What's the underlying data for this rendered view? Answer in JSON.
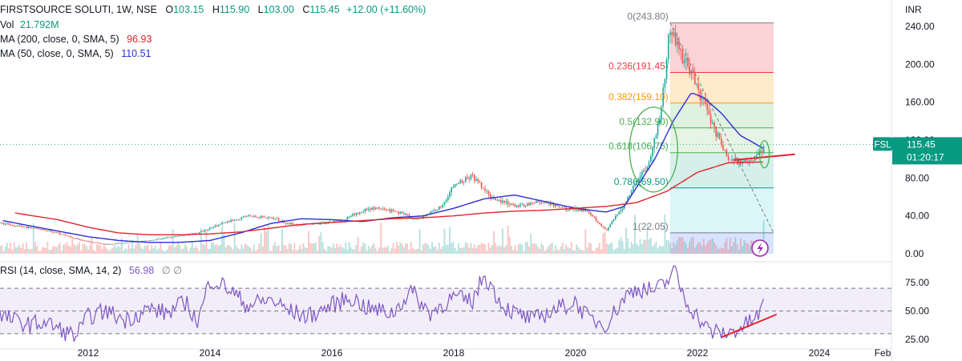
{
  "header": {
    "symbol": "FIRSTSOURCE SOLUTI, 1W, NSE",
    "o_label": "O",
    "o_value": "103.15",
    "h_label": "H",
    "h_value": "115.90",
    "l_label": "L",
    "l_value": "103.00",
    "c_label": "C",
    "c_value": "115.45",
    "change": "+12.00 (+11.60%)",
    "vol_label": "Vol",
    "vol_value": "21.792M",
    "ma200_label": "MA (200, close, 0, SMA, 5)",
    "ma200_value": "96.93",
    "ma50_label": "MA (50, close, 0, SMA, 5)",
    "ma50_value": "110.51"
  },
  "price_scale": {
    "currency": "INR",
    "ticks": [
      "240.00",
      "200.00",
      "160.00",
      "120.00",
      "80.00",
      "40.00",
      "0.00"
    ],
    "tick_values": [
      240,
      200,
      160,
      120,
      80,
      40,
      0
    ],
    "last_price_tag": "FSL",
    "last_price": "115.45",
    "countdown": "01:20:17"
  },
  "rsi": {
    "label": "RSI (14, close, SMA, 14, 2)",
    "value": "56.98",
    "extra": "∅ ∅",
    "ticks": [
      "75.00",
      "50.00",
      "25.00"
    ],
    "tick_values": [
      75,
      50,
      25
    ]
  },
  "time_axis": {
    "labels": [
      "2012",
      "2014",
      "2016",
      "2018",
      "2020",
      "2022",
      "2024",
      "Feb"
    ]
  },
  "colors": {
    "up": "#26a69a",
    "down": "#ef5350",
    "ma50": "#2a2fd4",
    "ma200": "#e0262b",
    "rsi": "#7e57c2",
    "trend": "#e8222a",
    "fib_red": "#f23645",
    "fib_orange": "#ff9800",
    "fib_green": "#4caf50",
    "fib_teal": "#089981",
    "fib_gray": "#787b86"
  },
  "chart_data": [
    {
      "type": "line",
      "title": "FIRSTSOURCE SOLUTI, 1W, NSE",
      "x_unit": "year",
      "y_range": [
        0,
        250
      ],
      "x_range": [
        2010.6,
        2025.2
      ],
      "grid": false,
      "series": [
        {
          "name": "FIRSTSOURCE SOLUTI",
          "x": [
            2010.6,
            2011.0,
            2011.5,
            2011.9,
            2012.3,
            2012.7,
            2013.0,
            2013.4,
            2013.8,
            2014.2,
            2014.6,
            2015.0,
            2015.4,
            2015.8,
            2016.2,
            2016.6,
            2017.0,
            2017.4,
            2017.8,
            2018.0,
            2018.3,
            2018.6,
            2019.0,
            2019.4,
            2019.8,
            2020.2,
            2020.5,
            2020.8,
            2021.0,
            2021.2,
            2021.4,
            2021.55,
            2021.7,
            2021.9,
            2022.1,
            2022.3,
            2022.5,
            2022.7,
            2022.9,
            2023.05,
            2023.1
          ],
          "y": [
            32,
            28,
            22,
            14,
            10,
            12,
            14,
            18,
            22,
            32,
            40,
            38,
            30,
            32,
            36,
            48,
            46,
            36,
            50,
            72,
            82,
            60,
            50,
            55,
            48,
            46,
            24,
            52,
            78,
            95,
            150,
            240,
            215,
            190,
            160,
            130,
            100,
            97,
            100,
            108,
            115.45
          ]
        },
        {
          "name": "MA (50, close, 0, SMA, 5)",
          "x": [
            2010.6,
            2011.0,
            2011.5,
            2012.0,
            2012.5,
            2013.0,
            2013.5,
            2014.0,
            2014.5,
            2015.0,
            2015.5,
            2016.0,
            2016.5,
            2017.0,
            2017.5,
            2018.0,
            2018.5,
            2019.0,
            2019.5,
            2020.0,
            2020.5,
            2020.8,
            2021.0,
            2021.3,
            2021.6,
            2021.9,
            2022.1,
            2022.4,
            2022.7,
            2022.9,
            2023.1
          ],
          "y": [
            35,
            30,
            24,
            18,
            14,
            12,
            12,
            14,
            22,
            32,
            37,
            36,
            34,
            38,
            40,
            48,
            58,
            62,
            55,
            48,
            44,
            50,
            70,
            100,
            140,
            170,
            165,
            148,
            125,
            118,
            110.51
          ]
        },
        {
          "name": "MA (200, close, 0, SMA, 5)",
          "x": [
            2010.8,
            2011.5,
            2012.0,
            2012.5,
            2013.0,
            2013.5,
            2014.0,
            2014.5,
            2015.0,
            2015.5,
            2016.0,
            2016.5,
            2017.0,
            2017.5,
            2018.0,
            2018.5,
            2019.0,
            2019.5,
            2020.0,
            2020.5,
            2021.0,
            2021.5,
            2022.0,
            2022.5,
            2023.1
          ],
          "y": [
            43,
            36,
            28,
            22,
            20,
            20,
            21,
            23,
            27,
            31,
            33,
            35,
            37,
            38,
            40,
            43,
            45,
            46,
            48,
            50,
            54,
            66,
            86,
            96,
            96.93
          ]
        }
      ],
      "fibonacci": {
        "levels": [
          {
            "ratio": "0",
            "label": "0(243.80)",
            "price": 243.8
          },
          {
            "ratio": "0.236",
            "label": "0.236(191.45)",
            "price": 191.45
          },
          {
            "ratio": "0.382",
            "label": "0.382(159.10)",
            "price": 159.1
          },
          {
            "ratio": "0.5",
            "label": "0.5(132.90)",
            "price": 132.9
          },
          {
            "ratio": "0.618",
            "label": "0.618(106.75)",
            "price": 106.75
          },
          {
            "ratio": "0.786",
            "label": "0.786(69.50)",
            "price": 69.5
          },
          {
            "ratio": "1",
            "label": "1(22.05)",
            "price": 22.05
          }
        ],
        "x_range": [
          2021.55,
          2023.25
        ]
      },
      "annotations": {
        "trendline": {
          "x": [
            2022.6,
            2023.6
          ],
          "y": [
            99,
            105
          ]
        }
      }
    },
    {
      "type": "line",
      "title": "RSI (14, close, SMA, 14, 2)",
      "y_range": [
        22,
        82
      ],
      "x_range": [
        2010.6,
        2025.2
      ],
      "grid": false,
      "bands": [
        30,
        50,
        70
      ],
      "series": [
        {
          "name": "RSI",
          "x": [
            2010.6,
            2011.0,
            2011.3,
            2011.6,
            2011.8,
            2012.0,
            2012.3,
            2012.6,
            2013.0,
            2013.3,
            2013.6,
            2013.8,
            2014.0,
            2014.3,
            2014.6,
            2015.0,
            2015.3,
            2015.6,
            2016.0,
            2016.3,
            2016.6,
            2017.0,
            2017.3,
            2017.6,
            2018.0,
            2018.3,
            2018.5,
            2018.8,
            2019.0,
            2019.3,
            2019.6,
            2020.0,
            2020.2,
            2020.5,
            2020.8,
            2021.0,
            2021.3,
            2021.5,
            2021.6,
            2021.8,
            2022.0,
            2022.2,
            2022.5,
            2022.8,
            2023.0,
            2023.1
          ],
          "y": [
            45,
            38,
            40,
            32,
            28,
            45,
            50,
            42,
            52,
            48,
            58,
            40,
            78,
            70,
            55,
            60,
            50,
            45,
            55,
            62,
            52,
            48,
            68,
            48,
            62,
            58,
            82,
            55,
            48,
            42,
            50,
            58,
            44,
            38,
            62,
            70,
            68,
            75,
            88,
            60,
            45,
            32,
            30,
            38,
            46,
            56.98
          ]
        }
      ],
      "annotations": {
        "trendline": {
          "x": [
            2022.4,
            2023.3
          ],
          "y": [
            27,
            47
          ]
        }
      }
    }
  ]
}
